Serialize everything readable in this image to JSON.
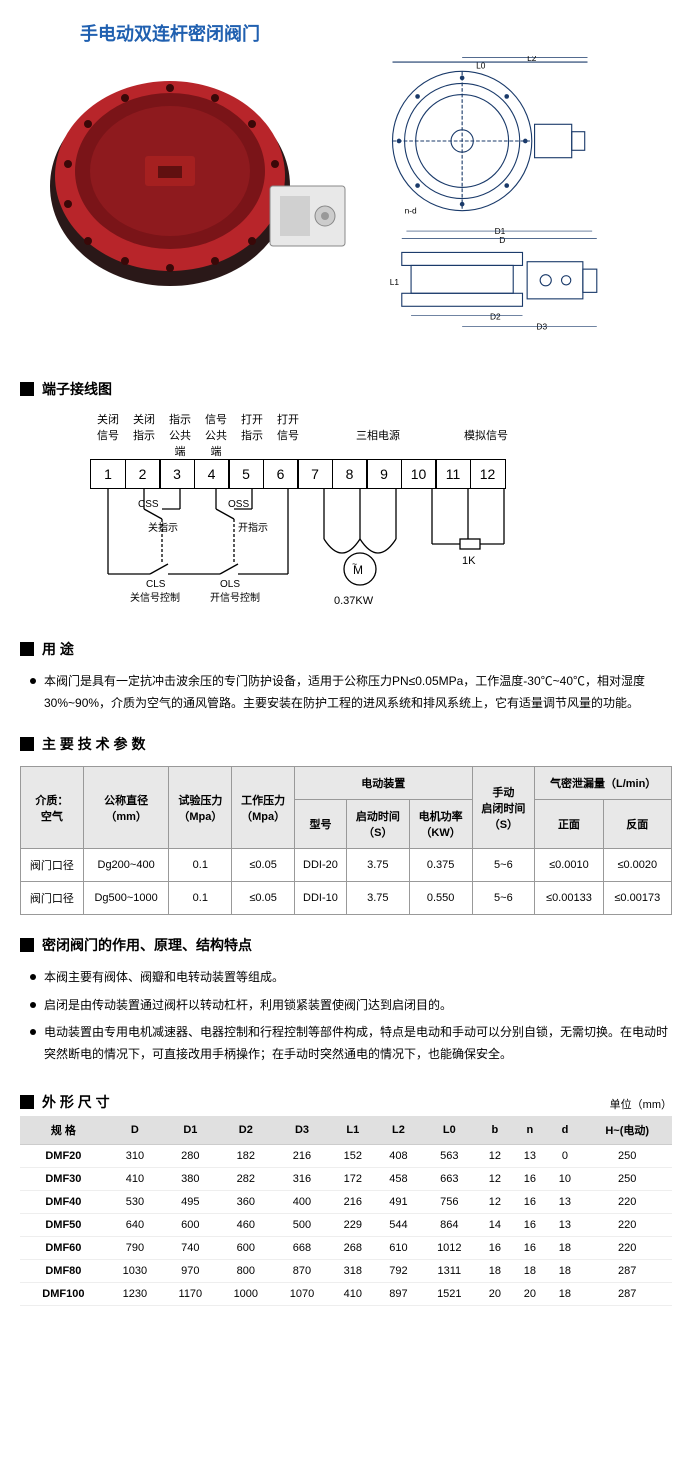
{
  "title": "手电动双连杆密闭阀门",
  "sections": {
    "terminal": "端子接线图",
    "usage": "用 途",
    "tech": "主 要 技 术 参 数",
    "feature": "密闭阀门的作用、原理、结构特点",
    "dim": "外 形 尺 寸"
  },
  "drawing_labels": {
    "L0": "L0",
    "L2": "L2",
    "nd": "n-d",
    "D": "D",
    "D1": "D1",
    "D2": "D2",
    "D3": "D3",
    "L1": "L1"
  },
  "terminals": {
    "upper_labels_r1": [
      "关闭",
      "关闭",
      "指示",
      "信号",
      "打开",
      "打开",
      "",
      "",
      "",
      "",
      "",
      ""
    ],
    "upper_labels_r2": [
      "信号",
      "指示",
      "公共",
      "公共",
      "指示",
      "信号",
      "",
      "三相电源",
      "",
      "",
      "模拟信号",
      ""
    ],
    "upper_labels_r3": [
      "",
      "",
      "端",
      "端",
      "",
      "",
      "",
      "",
      "",
      "",
      "",
      ""
    ],
    "numbers": [
      "1",
      "2",
      "3",
      "4",
      "5",
      "6",
      "7",
      "8",
      "9",
      "10",
      "11",
      "12"
    ],
    "css": "CSS",
    "oss": "OSS",
    "close_ind": "关指示",
    "open_ind": "开指示",
    "cls": "CLS",
    "ols": "OLS",
    "close_sig": "关信号控制",
    "open_sig": "开信号控制",
    "motor": "M",
    "motor_pow": "0.37KW",
    "k1": "1K"
  },
  "usage_text": "本阀门是具有一定抗冲击波余压的专门防护设备，适用于公称压力PN≤0.05MPa，工作温度-30℃~40℃，相对湿度30%~90%，介质为空气的通风管路。主要安装在防护工程的进风系统和排风系统上，它有适量调节风量的功能。",
  "spec_headers": {
    "medium": "介质：\n空气",
    "dn": "公称直径\n（mm）",
    "test_p": "试验压力\n（Mpa）",
    "work_p": "工作压力\n（Mpa）",
    "elec": "电动装置",
    "model": "型号",
    "start_t": "启动时间\n（S）",
    "motor_p": "电机功率\n（KW）",
    "manual_t": "手动\n启闭时间\n（S）",
    "leak": "气密泄漏量（L/min）",
    "front": "正面",
    "back": "反面"
  },
  "spec_rows": [
    {
      "label": "阀门口径",
      "dn": "Dg200~400",
      "tp": "0.1",
      "wp": "≤0.05",
      "model": "DDI-20",
      "st": "3.75",
      "mp": "0.375",
      "mt": "5~6",
      "front": "≤0.0010",
      "back": "≤0.0020"
    },
    {
      "label": "阀门口径",
      "dn": "Dg500~1000",
      "tp": "0.1",
      "wp": "≤0.05",
      "model": "DDI-10",
      "st": "3.75",
      "mp": "0.550",
      "mt": "5~6",
      "front": "≤0.00133",
      "back": "≤0.00173"
    }
  ],
  "features": [
    "本阀主要有阀体、阀瓣和电转动装置等组成。",
    "启闭是由传动装置通过阀杆以转动杠杆，利用锁紧装置使阀门达到启闭目的。",
    "电动装置由专用电机减速器、电器控制和行程控制等部件构成，特点是电动和手动可以分别自锁，无需切换。在电动时突然断电的情况下，可直接改用手柄操作；在手动时突然通电的情况下，也能确保安全。"
  ],
  "dim_unit": "单位（mm）",
  "dim_headers": [
    "规 格",
    "D",
    "D1",
    "D2",
    "D3",
    "L1",
    "L2",
    "L0",
    "b",
    "n",
    "d",
    "H~(电动)"
  ],
  "dim_rows": [
    [
      "DMF20",
      "310",
      "280",
      "182",
      "216",
      "152",
      "408",
      "563",
      "12",
      "13",
      "0",
      "250"
    ],
    [
      "DMF30",
      "410",
      "380",
      "282",
      "316",
      "172",
      "458",
      "663",
      "12",
      "16",
      "10",
      "250"
    ],
    [
      "DMF40",
      "530",
      "495",
      "360",
      "400",
      "216",
      "491",
      "756",
      "12",
      "16",
      "13",
      "220"
    ],
    [
      "DMF50",
      "640",
      "600",
      "460",
      "500",
      "229",
      "544",
      "864",
      "14",
      "16",
      "13",
      "220"
    ],
    [
      "DMF60",
      "790",
      "740",
      "600",
      "668",
      "268",
      "610",
      "1012",
      "16",
      "16",
      "18",
      "220"
    ],
    [
      "DMF80",
      "1030",
      "970",
      "800",
      "870",
      "318",
      "792",
      "1311",
      "18",
      "18",
      "18",
      "287"
    ],
    [
      "DMF100",
      "1230",
      "1170",
      "1000",
      "1070",
      "410",
      "897",
      "1521",
      "20",
      "20",
      "18",
      "287"
    ]
  ],
  "colors": {
    "title": "#2060b0",
    "valve_red": "#b8252a",
    "valve_dark": "#2a1818",
    "actuator": "#e8e8e8",
    "drawing_line": "#1a3a6a"
  }
}
